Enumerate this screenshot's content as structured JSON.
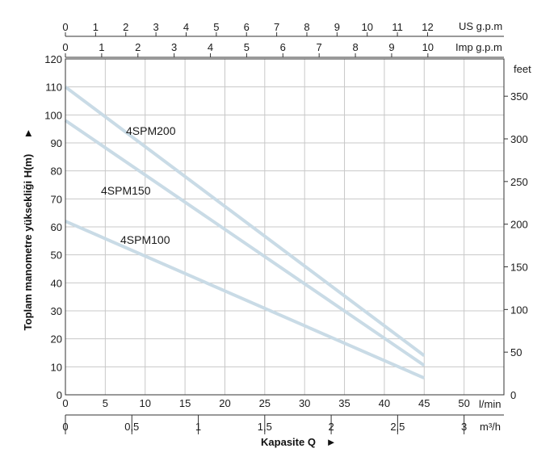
{
  "chart_data": {
    "type": "line",
    "title": "",
    "xlabel": "Kapasite Q",
    "ylabel": "Toplam manometre yüksekliği  H(m)",
    "x_unit": "l/min",
    "xlim": [
      0,
      55
    ],
    "ylim": [
      0,
      120
    ],
    "x_ticks": [
      0,
      5,
      10,
      15,
      20,
      25,
      30,
      35,
      40,
      45,
      50
    ],
    "y_ticks": [
      0,
      10,
      20,
      30,
      40,
      50,
      60,
      70,
      80,
      90,
      100,
      110,
      120
    ],
    "grid": true,
    "series": [
      {
        "name": "4SPM200",
        "x": [
          0,
          45
        ],
        "y": [
          110,
          14
        ]
      },
      {
        "name": "4SPM150",
        "x": [
          0,
          45
        ],
        "y": [
          98,
          10.5
        ]
      },
      {
        "name": "4SPM100",
        "x": [
          0,
          45
        ],
        "y": [
          62,
          6
        ]
      }
    ],
    "secondary_axes": {
      "right_feet": {
        "label": "feet",
        "ticks": [
          0,
          50,
          100,
          150,
          200,
          250,
          300,
          350
        ]
      },
      "top_us_gpm": {
        "label": "US g.p.m",
        "ticks": [
          0,
          1,
          2,
          3,
          4,
          5,
          6,
          7,
          8,
          9,
          10,
          11,
          12
        ]
      },
      "top_imp_gpm": {
        "label": "Imp g.p.m",
        "ticks": [
          0,
          1,
          2,
          3,
          4,
          5,
          6,
          7,
          8,
          9,
          10
        ]
      },
      "bottom_m3h": {
        "label": "m³/h",
        "ticks": [
          "0",
          "0,5",
          "1",
          "1,5",
          "2",
          "2,5",
          "3"
        ]
      }
    },
    "colors": {
      "series_line": "#c9dbe6",
      "grid": "#c8c8c8",
      "axis": "#333333",
      "text": "#1a1a1a"
    }
  }
}
